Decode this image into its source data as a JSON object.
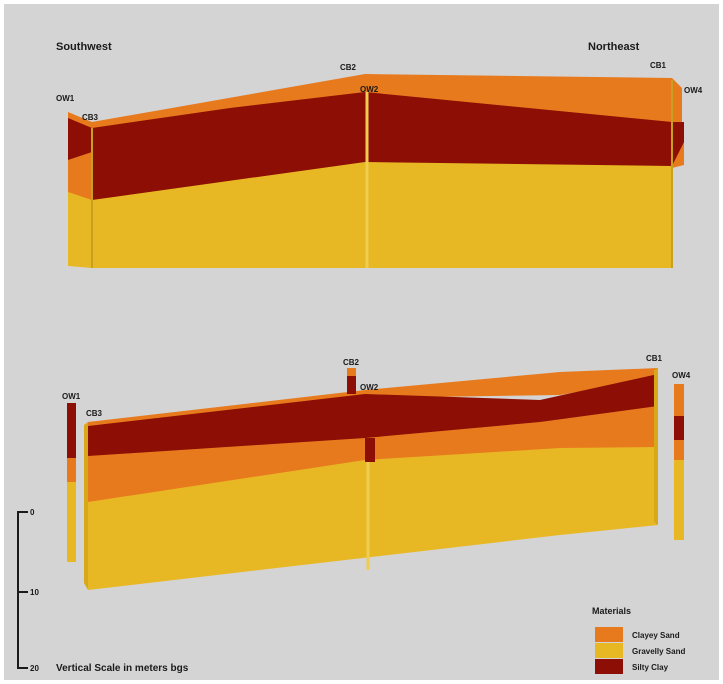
{
  "colors": {
    "background": "#d4d4d4",
    "clayey_sand": "#e87a1e",
    "gravelly_sand": "#e8b824",
    "silty_clay": "#8c0e04"
  },
  "directions": {
    "left": "Southwest",
    "right": "Northeast"
  },
  "top_section": {
    "wells": [
      "OW1",
      "CB3",
      "CB2",
      "OW2",
      "CB1",
      "OW4"
    ]
  },
  "bottom_section": {
    "wells": [
      "OW1",
      "CB3",
      "CB2",
      "OW2",
      "CB1",
      "OW4"
    ]
  },
  "scale": {
    "ticks": [
      "0",
      "10",
      "20"
    ],
    "caption": "Vertical Scale in meters bgs"
  },
  "legend": {
    "title": "Materials",
    "items": [
      {
        "label": "Clayey Sand",
        "color": "#e87a1e"
      },
      {
        "label": "Gravelly Sand",
        "color": "#e8b824"
      },
      {
        "label": "Silty Clay",
        "color": "#8c0e04"
      }
    ]
  }
}
